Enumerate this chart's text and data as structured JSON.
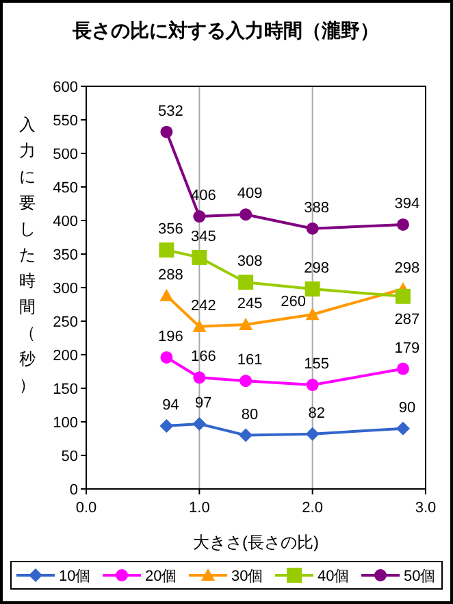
{
  "chart_data": {
    "type": "line",
    "title": "長さの比に対する入力時間（瀧野）",
    "xlabel": "大きさ(長さの比)",
    "ylabel": "入力に要した時間（秒）",
    "xlim": [
      0,
      3
    ],
    "xticks": [
      {
        "value": 0,
        "label": "0.0"
      },
      {
        "value": 1,
        "label": "1.0"
      },
      {
        "value": 2,
        "label": "2.0"
      },
      {
        "value": 3,
        "label": "3.0"
      }
    ],
    "ylim": [
      0,
      600
    ],
    "yticks": [
      0,
      50,
      100,
      150,
      200,
      250,
      300,
      350,
      400,
      450,
      500,
      550,
      600
    ],
    "x": [
      0.71,
      1.0,
      1.41,
      2.0,
      2.8
    ],
    "grid": "x",
    "legend": "bottom",
    "data_labels": true,
    "series": [
      {
        "name": "10個",
        "color": "#3366cc",
        "marker": "diamond",
        "values": [
          94,
          97,
          80,
          82,
          90
        ]
      },
      {
        "name": "20個",
        "color": "#ff00ff",
        "marker": "circle",
        "values": [
          196,
          166,
          161,
          155,
          179
        ]
      },
      {
        "name": "30個",
        "color": "#ff9900",
        "marker": "triangle",
        "values": [
          288,
          242,
          245,
          260,
          298
        ]
      },
      {
        "name": "40個",
        "color": "#99cc00",
        "marker": "square",
        "values": [
          356,
          345,
          308,
          298,
          287
        ]
      },
      {
        "name": "50個",
        "color": "#800080",
        "marker": "circle",
        "values": [
          532,
          406,
          409,
          388,
          394
        ]
      }
    ]
  }
}
